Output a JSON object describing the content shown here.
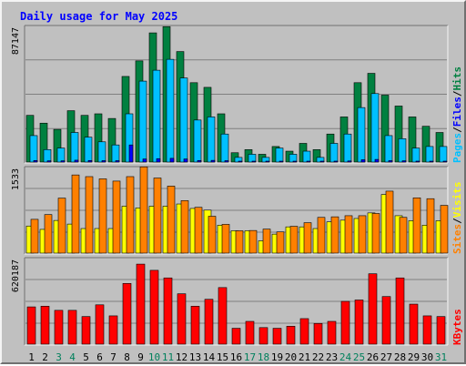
{
  "title": "Daily usage for May 2025",
  "colors": {
    "hits": "#008040",
    "files": "#00c0ff",
    "pages": "#0000ff",
    "visits": "#ffff00",
    "sites": "#ff8000",
    "kbytes": "#ff0000",
    "title": "#0000ff",
    "weekend_label": "#00805c",
    "weekday_label": "#000000"
  },
  "chart_data": [
    {
      "type": "bar",
      "panel": "top",
      "y_max_label": "87147",
      "ylim": [
        0,
        87147
      ],
      "grid": true,
      "legend_right": [
        {
          "text": "Pages",
          "color": "#00c0ff"
        },
        {
          "text": "/",
          "color": "#000000"
        },
        {
          "text": "Files",
          "color": "#0000ff"
        },
        {
          "text": "/",
          "color": "#000000"
        },
        {
          "text": "Hits",
          "color": "#008040"
        }
      ],
      "categories": [
        "1",
        "2",
        "3",
        "4",
        "5",
        "6",
        "7",
        "8",
        "9",
        "10",
        "11",
        "12",
        "13",
        "14",
        "15",
        "16",
        "17",
        "18",
        "19",
        "20",
        "21",
        "22",
        "23",
        "24",
        "25",
        "26",
        "27",
        "28",
        "29",
        "30",
        "31"
      ],
      "series": [
        {
          "name": "Hits",
          "values": [
            30000,
            25000,
            21000,
            33000,
            30000,
            31000,
            28000,
            55000,
            65000,
            83000,
            87000,
            71000,
            51000,
            48000,
            31000,
            6000,
            8000,
            5000,
            10000,
            7000,
            12000,
            8000,
            18000,
            29000,
            51000,
            57000,
            43000,
            36000,
            29000,
            23000,
            19000
          ]
        },
        {
          "name": "Files",
          "values": [
            17000,
            8000,
            9000,
            19000,
            16000,
            13000,
            11000,
            31000,
            52000,
            59000,
            66000,
            54000,
            27000,
            29000,
            18000,
            3000,
            5000,
            3000,
            9000,
            5000,
            7000,
            3000,
            12000,
            18000,
            35000,
            44000,
            17000,
            15000,
            9000,
            10000,
            10000
          ]
        },
        {
          "name": "Pages",
          "values": [
            1000,
            800,
            800,
            1200,
            1000,
            900,
            900,
            11000,
            2000,
            2200,
            2400,
            2000,
            1000,
            1100,
            900,
            300,
            300,
            200,
            400,
            300,
            400,
            300,
            600,
            700,
            1500,
            1700,
            900,
            800,
            600,
            500,
            500
          ]
        }
      ]
    },
    {
      "type": "bar",
      "panel": "middle",
      "y_max_label": "1533",
      "ylim": [
        0,
        1533
      ],
      "grid": true,
      "legend_right": [
        {
          "text": "Sites",
          "color": "#ff8000"
        },
        {
          "text": "/",
          "color": "#000000"
        },
        {
          "text": "Visits",
          "color": "#ffff00"
        }
      ],
      "categories": [
        "1",
        "2",
        "3",
        "4",
        "5",
        "6",
        "7",
        "8",
        "9",
        "10",
        "11",
        "12",
        "13",
        "14",
        "15",
        "16",
        "17",
        "18",
        "19",
        "20",
        "21",
        "22",
        "23",
        "24",
        "25",
        "26",
        "27",
        "28",
        "29",
        "30",
        "31"
      ],
      "series": [
        {
          "name": "Visits",
          "values": [
            485,
            425,
            585,
            520,
            440,
            440,
            440,
            840,
            810,
            840,
            840,
            880,
            800,
            770,
            500,
            400,
            400,
            220,
            340,
            470,
            470,
            440,
            560,
            590,
            620,
            720,
            1050,
            670,
            580,
            500,
            580
          ]
        },
        {
          "name": "Sites",
          "values": [
            605,
            690,
            985,
            1400,
            1370,
            1330,
            1290,
            1370,
            1545,
            1345,
            1200,
            940,
            820,
            660,
            515,
            400,
            405,
            430,
            380,
            480,
            545,
            640,
            650,
            670,
            670,
            710,
            1110,
            640,
            990,
            975,
            855
          ]
        }
      ]
    },
    {
      "type": "bar",
      "panel": "bottom",
      "y_max_label": "620187",
      "ylim": [
        0,
        620187
      ],
      "grid": true,
      "legend_right": [
        {
          "text": "KBytes",
          "color": "#ff0000"
        }
      ],
      "categories": [
        "1",
        "2",
        "3",
        "4",
        "5",
        "6",
        "7",
        "8",
        "9",
        "10",
        "11",
        "12",
        "13",
        "14",
        "15",
        "16",
        "17",
        "18",
        "19",
        "20",
        "21",
        "22",
        "23",
        "24",
        "25",
        "26",
        "27",
        "28",
        "29",
        "30",
        "31"
      ],
      "series": [
        {
          "name": "KBytes",
          "values": [
            270000,
            275000,
            245000,
            245000,
            200000,
            285000,
            205000,
            440000,
            580000,
            535000,
            480000,
            365000,
            275000,
            325000,
            410000,
            115000,
            165000,
            120000,
            115000,
            130000,
            185000,
            150000,
            165000,
            310000,
            320000,
            510000,
            345000,
            480000,
            290000,
            205000,
            200000
          ]
        }
      ]
    }
  ],
  "x_axis": {
    "labels": [
      "1",
      "2",
      "3",
      "4",
      "5",
      "6",
      "7",
      "8",
      "9",
      "10",
      "11",
      "12",
      "13",
      "14",
      "15",
      "16",
      "17",
      "18",
      "19",
      "20",
      "21",
      "22",
      "23",
      "24",
      "25",
      "26",
      "27",
      "28",
      "29",
      "30",
      "31"
    ],
    "weekend_days": [
      "3",
      "4",
      "10",
      "11",
      "17",
      "18",
      "24",
      "25",
      "31"
    ]
  }
}
